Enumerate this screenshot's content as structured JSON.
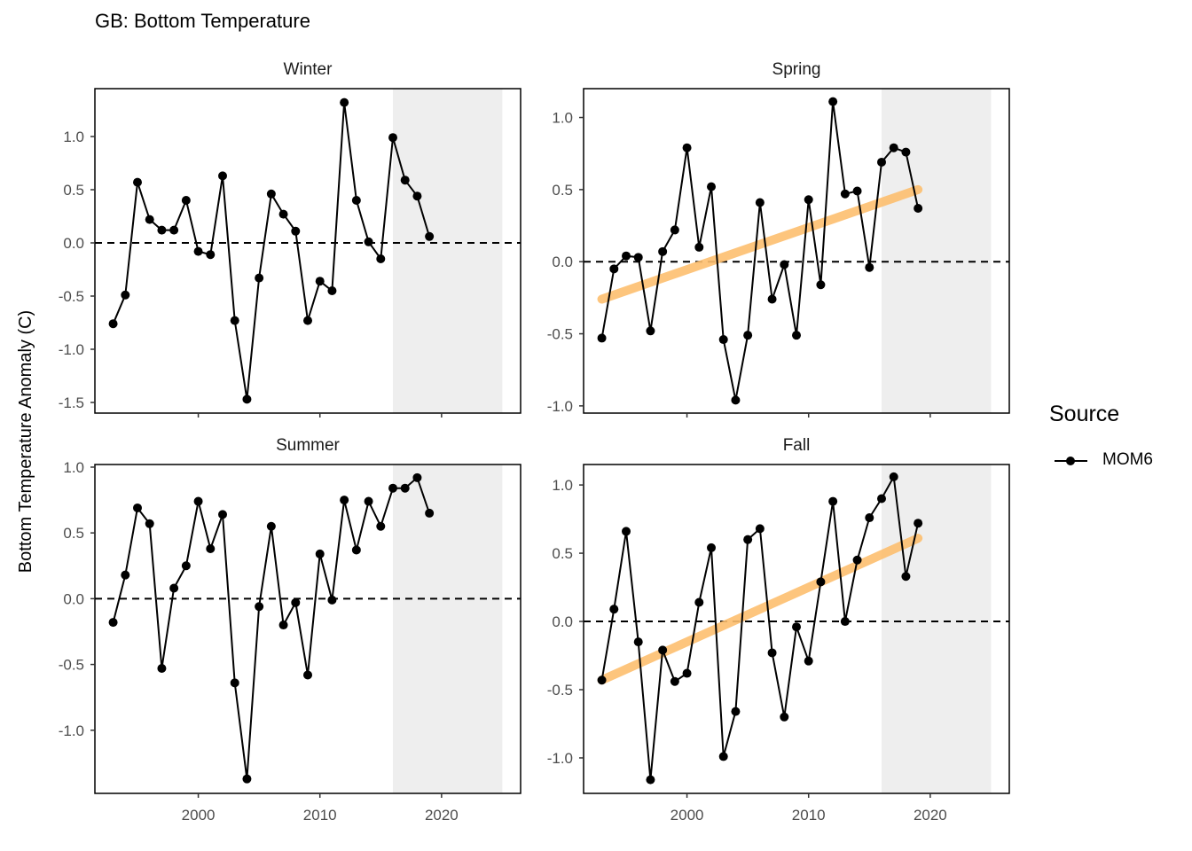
{
  "title": "GB: Bottom Temperature",
  "ylabel": "Bottom Temperature Anomaly (C)",
  "legend": {
    "title": "Source",
    "entries": [
      "MOM6"
    ]
  },
  "colors": {
    "line": "#000000",
    "trend": "#FDBF6F",
    "shade": "#EEEEEE",
    "dashed": "#000000"
  },
  "chart_data": [
    {
      "type": "line",
      "panel": "Winter",
      "x": [
        1993,
        1994,
        1995,
        1996,
        1997,
        1998,
        1999,
        2000,
        2001,
        2002,
        2003,
        2004,
        2005,
        2006,
        2007,
        2008,
        2009,
        2010,
        2011,
        2012,
        2013,
        2014,
        2015,
        2016,
        2017,
        2018,
        2019
      ],
      "series": [
        {
          "name": "MOM6",
          "values": [
            -0.76,
            -0.49,
            0.57,
            0.22,
            0.12,
            0.12,
            0.4,
            -0.08,
            -0.11,
            0.63,
            -0.73,
            -1.47,
            -0.33,
            0.46,
            0.27,
            0.11,
            -0.73,
            -0.36,
            -0.45,
            1.32,
            0.4,
            0.01,
            -0.15,
            0.99,
            0.59,
            0.44,
            0.06
          ]
        }
      ],
      "trend": null,
      "xlim": [
        1991.5,
        2026.5
      ],
      "ylim": [
        -1.6,
        1.45
      ],
      "yticks": [
        -1.5,
        -1.0,
        -0.5,
        0.0,
        0.5,
        1.0
      ],
      "ytick_labels": [
        "-1.5",
        "-1.0",
        "-0.5",
        "0.0",
        "0.5",
        "1.0"
      ],
      "shade": [
        2016,
        2025
      ],
      "hline": 0
    },
    {
      "type": "line",
      "panel": "Spring",
      "x": [
        1993,
        1994,
        1995,
        1996,
        1997,
        1998,
        1999,
        2000,
        2001,
        2002,
        2003,
        2004,
        2005,
        2006,
        2007,
        2008,
        2009,
        2010,
        2011,
        2012,
        2013,
        2014,
        2015,
        2016,
        2017,
        2018,
        2019
      ],
      "series": [
        {
          "name": "MOM6",
          "values": [
            -0.53,
            -0.05,
            0.04,
            0.03,
            -0.48,
            0.07,
            0.22,
            0.79,
            0.1,
            0.52,
            -0.54,
            -0.96,
            -0.51,
            0.41,
            -0.26,
            -0.02,
            -0.51,
            0.43,
            -0.16,
            1.11,
            0.47,
            0.49,
            -0.04,
            0.69,
            0.79,
            0.76,
            0.37
          ]
        }
      ],
      "trend": {
        "x": [
          1993,
          2019
        ],
        "y": [
          -0.26,
          0.5
        ]
      },
      "xlim": [
        1991.5,
        2026.5
      ],
      "ylim": [
        -1.05,
        1.2
      ],
      "yticks": [
        -1.0,
        -0.5,
        0.0,
        0.5,
        1.0
      ],
      "ytick_labels": [
        "-1.0",
        "-0.5",
        "0.0",
        "0.5",
        "1.0"
      ],
      "shade": [
        2016,
        2025
      ],
      "hline": 0
    },
    {
      "type": "line",
      "panel": "Summer",
      "x": [
        1993,
        1994,
        1995,
        1996,
        1997,
        1998,
        1999,
        2000,
        2001,
        2002,
        2003,
        2004,
        2005,
        2006,
        2007,
        2008,
        2009,
        2010,
        2011,
        2012,
        2013,
        2014,
        2015,
        2016,
        2017,
        2018,
        2019
      ],
      "series": [
        {
          "name": "MOM6",
          "values": [
            -0.18,
            0.18,
            0.69,
            0.57,
            -0.53,
            0.08,
            0.25,
            0.74,
            0.38,
            0.64,
            -0.64,
            -1.37,
            -0.06,
            0.55,
            -0.2,
            -0.03,
            -0.58,
            0.34,
            -0.01,
            0.75,
            0.37,
            0.74,
            0.55,
            0.84,
            0.84,
            0.92,
            0.65
          ]
        }
      ],
      "trend": null,
      "xlim": [
        1991.5,
        2026.5
      ],
      "ylim": [
        -1.48,
        1.02
      ],
      "yticks": [
        -1.0,
        -0.5,
        0.0,
        0.5,
        1.0
      ],
      "ytick_labels": [
        "-1.0",
        "-0.5",
        "0.0",
        "0.5",
        "1.0"
      ],
      "shade": [
        2016,
        2025
      ],
      "hline": 0
    },
    {
      "type": "line",
      "panel": "Fall",
      "x": [
        1993,
        1994,
        1995,
        1996,
        1997,
        1998,
        1999,
        2000,
        2001,
        2002,
        2003,
        2004,
        2005,
        2006,
        2007,
        2008,
        2009,
        2010,
        2011,
        2012,
        2013,
        2014,
        2015,
        2016,
        2017,
        2018,
        2019
      ],
      "series": [
        {
          "name": "MOM6",
          "values": [
            -0.43,
            0.09,
            0.66,
            -0.15,
            -1.16,
            -0.21,
            -0.44,
            -0.38,
            0.14,
            0.54,
            -0.99,
            -0.66,
            0.6,
            0.68,
            -0.23,
            -0.7,
            -0.04,
            -0.29,
            0.29,
            0.88,
            0.0,
            0.45,
            0.76,
            0.9,
            1.06,
            0.33,
            0.72
          ]
        }
      ],
      "trend": {
        "x": [
          1993,
          2019
        ],
        "y": [
          -0.43,
          0.61
        ]
      },
      "xlim": [
        1991.5,
        2026.5
      ],
      "ylim": [
        -1.26,
        1.15
      ],
      "yticks": [
        -1.0,
        -0.5,
        0.0,
        0.5,
        1.0
      ],
      "ytick_labels": [
        "-1.0",
        "-0.5",
        "0.0",
        "0.5",
        "1.0"
      ],
      "shade": [
        2016,
        2025
      ],
      "hline": 0
    }
  ],
  "xticks": [
    2000,
    2010,
    2020
  ],
  "xtick_labels": [
    "2000",
    "2010",
    "2020"
  ]
}
